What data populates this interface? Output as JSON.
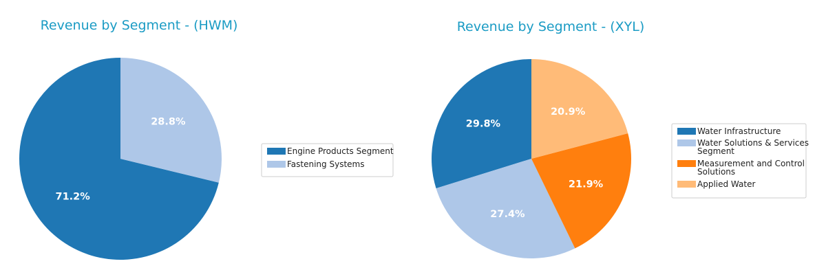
{
  "chart_data": [
    {
      "type": "pie",
      "title": "Revenue by Segment - (HWM)",
      "legend_position": "right",
      "slices": [
        {
          "name": "Engine Products Segment",
          "legend_lines": [
            "Engine Products Segment"
          ],
          "value": 71.2,
          "label": "71.2%",
          "color": "#1f77b4"
        },
        {
          "name": "Fastening Systems",
          "legend_lines": [
            "Fastening Systems"
          ],
          "value": 28.8,
          "label": "28.8%",
          "color": "#aec7e8"
        }
      ]
    },
    {
      "type": "pie",
      "title": "Revenue by Segment - (XYL)",
      "legend_position": "right",
      "slices": [
        {
          "name": "Water Infrastructure",
          "legend_lines": [
            "Water Infrastructure"
          ],
          "value": 29.8,
          "label": "29.8%",
          "color": "#1f77b4"
        },
        {
          "name": "Water Solutions & Services Segment",
          "legend_lines": [
            "Water Solutions & Services",
            "Segment"
          ],
          "value": 27.4,
          "label": "27.4%",
          "color": "#aec7e8"
        },
        {
          "name": "Measurement and Control Solutions",
          "legend_lines": [
            "Measurement and Control",
            "Solutions"
          ],
          "value": 21.9,
          "label": "21.9%",
          "color": "#ff7f0e"
        },
        {
          "name": "Applied Water",
          "legend_lines": [
            "Applied Water"
          ],
          "value": 20.9,
          "label": "20.9%",
          "color": "#ffbb78"
        }
      ]
    }
  ]
}
